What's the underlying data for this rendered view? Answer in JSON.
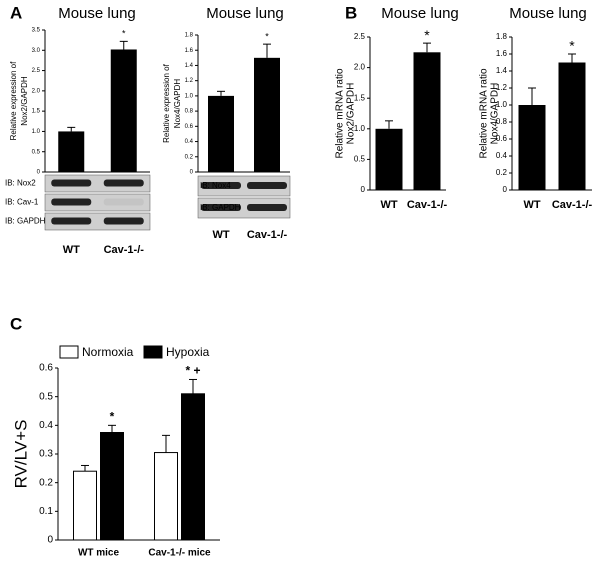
{
  "panel_letters": [
    "A",
    "B",
    "C"
  ],
  "chart_data": [
    {
      "type": "bar",
      "title": "Mouse lung",
      "ylabel": [
        "Relative expression of",
        "Nox2/GAPDH"
      ],
      "categories": [
        "WT",
        "Cav-1-/-"
      ],
      "values": [
        1.0,
        3.02
      ],
      "errors": [
        0.1,
        0.2
      ],
      "color": "#000000",
      "ylim": [
        0,
        3.5
      ],
      "yticks": [
        0,
        0.5,
        {
          "value": 1,
          "label": "1.0"
        },
        1.5,
        {
          "value": 2,
          "label": "2.0"
        },
        2.5,
        {
          "value": 3,
          "label": "3.0"
        },
        3.5
      ],
      "annotations": [
        "*"
      ],
      "blots": [
        "IB: Nox2",
        "IB: Cav-1",
        "IB: GAPDH"
      ]
    },
    {
      "type": "bar",
      "title": "Mouse lung",
      "ylabel": [
        "Relative expression of",
        "Nox4/GAPDH"
      ],
      "categories": [
        "WT",
        "Cav-1-/-"
      ],
      "values": [
        1.0,
        1.5
      ],
      "errors": [
        0.06,
        0.18
      ],
      "color": "#000000",
      "ylim": [
        0,
        1.8
      ],
      "yticks": [
        0,
        0.2,
        0.4,
        0.6,
        0.8,
        {
          "value": 1,
          "label": "1.0"
        },
        1.2,
        1.4,
        1.6,
        1.8
      ],
      "annotations": [
        "*"
      ],
      "blots": [
        "IB: Nox4",
        "IB: GAPDH"
      ]
    },
    {
      "type": "bar",
      "title": "Mouse lung",
      "ylabel": [
        "Relative mRNA ratio",
        "Nox2/GAPDH"
      ],
      "categories": [
        "WT",
        "Cav-1-/-"
      ],
      "values": [
        1.0,
        2.25
      ],
      "errors": [
        0.13,
        0.15
      ],
      "color": "#000000",
      "ylim": [
        0,
        2.5
      ],
      "yticks": [
        0,
        0.5,
        {
          "value": 1,
          "label": "1.0"
        },
        1.5,
        {
          "value": 2,
          "label": "2.0"
        },
        2.5
      ],
      "annotations": [
        "*"
      ]
    },
    {
      "type": "bar",
      "title": "Mouse lung",
      "ylabel": [
        "Relative mRNA ratio",
        "Nox4/GAPDH"
      ],
      "categories": [
        "WT",
        "Cav-1-/-"
      ],
      "values": [
        1.0,
        1.5
      ],
      "errors": [
        0.2,
        0.1
      ],
      "color": "#000000",
      "ylim": [
        0,
        1.8
      ],
      "yticks": [
        0,
        0.2,
        0.4,
        0.6,
        0.8,
        {
          "value": 1,
          "label": "1.0"
        },
        1.2,
        1.4,
        1.6,
        1.8
      ],
      "annotations": [
        "*"
      ]
    },
    {
      "type": "grouped-bar",
      "ylabel": [
        "RV/LV+S"
      ],
      "categories": [
        "WT mice",
        "Cav-1-/- mice"
      ],
      "series": [
        {
          "name": "Normoxia",
          "color": "#ffffff",
          "values": [
            0.24,
            0.305
          ],
          "errors": [
            0.02,
            0.06
          ]
        },
        {
          "name": "Hypoxia",
          "color": "#000000",
          "values": [
            0.375,
            0.51
          ],
          "errors": [
            0.025,
            0.05
          ]
        }
      ],
      "ylim": [
        0,
        0.6
      ],
      "yticks": [
        0,
        0.1,
        0.2,
        0.3,
        0.4,
        0.5,
        0.6
      ],
      "annotations": [
        "*",
        "* +"
      ]
    }
  ]
}
